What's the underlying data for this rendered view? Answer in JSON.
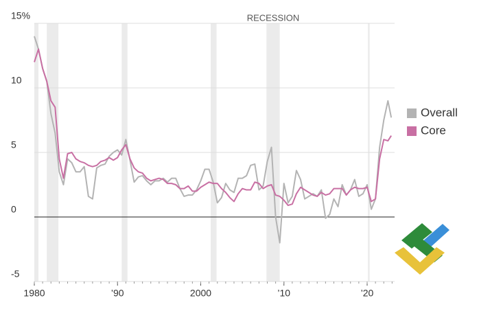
{
  "chart_data": {
    "type": "line",
    "annotation": "RECESSION",
    "recessions": [
      [
        1980.0,
        1980.5
      ],
      [
        1981.5,
        1982.9
      ],
      [
        1990.5,
        1991.2
      ],
      [
        2001.2,
        2001.9
      ],
      [
        2007.9,
        2009.5
      ],
      [
        2020.1,
        2020.3
      ]
    ],
    "x": [
      1980.0,
      1980.5,
      1981.0,
      1981.5,
      1982.0,
      1982.5,
      1983.0,
      1983.5,
      1984.0,
      1984.5,
      1985.0,
      1985.5,
      1986.0,
      1986.5,
      1987.0,
      1987.5,
      1988.0,
      1988.5,
      1989.0,
      1989.5,
      1990.0,
      1990.5,
      1991.0,
      1991.5,
      1992.0,
      1992.5,
      1993.0,
      1993.5,
      1994.0,
      1994.5,
      1995.0,
      1995.5,
      1996.0,
      1996.5,
      1997.0,
      1997.5,
      1998.0,
      1998.5,
      1999.0,
      1999.5,
      2000.0,
      2000.5,
      2001.0,
      2001.5,
      2002.0,
      2002.5,
      2003.0,
      2003.5,
      2004.0,
      2004.5,
      2005.0,
      2005.5,
      2006.0,
      2006.5,
      2007.0,
      2007.5,
      2008.0,
      2008.5,
      2009.0,
      2009.5,
      2010.0,
      2010.5,
      2011.0,
      2011.5,
      2012.0,
      2012.5,
      2013.0,
      2013.5,
      2014.0,
      2014.5,
      2015.0,
      2015.5,
      2016.0,
      2016.5,
      2017.0,
      2017.5,
      2018.0,
      2018.5,
      2019.0,
      2019.5,
      2020.0,
      2020.5,
      2021.0,
      2021.5,
      2022.0,
      2022.5,
      2022.9
    ],
    "series": [
      {
        "name": "Overall",
        "color": "#b3b3b3",
        "values": [
          14.0,
          13.0,
          11.5,
          10.5,
          8.0,
          6.5,
          3.5,
          2.5,
          4.5,
          4.2,
          3.5,
          3.5,
          3.9,
          1.6,
          1.4,
          3.8,
          4.0,
          4.1,
          4.7,
          5.0,
          5.2,
          4.8,
          6.0,
          4.4,
          2.7,
          3.1,
          3.2,
          2.8,
          2.5,
          2.8,
          2.8,
          3.0,
          2.7,
          3.0,
          3.0,
          2.2,
          1.6,
          1.7,
          1.7,
          2.1,
          2.8,
          3.7,
          3.7,
          2.7,
          1.1,
          1.5,
          2.6,
          2.1,
          1.9,
          3.0,
          3.0,
          3.2,
          4.0,
          4.1,
          2.1,
          2.4,
          4.3,
          5.4,
          0.0,
          -2.0,
          2.6,
          1.1,
          1.6,
          3.6,
          2.9,
          1.4,
          1.6,
          1.8,
          1.6,
          2.1,
          -0.1,
          0.2,
          1.4,
          0.8,
          2.5,
          1.7,
          2.1,
          2.9,
          1.6,
          1.8,
          2.5,
          0.6,
          1.4,
          5.4,
          7.5,
          9.0,
          7.7
        ]
      },
      {
        "name": "Core",
        "color": "#c86fa3",
        "values": [
          12.0,
          13.0,
          11.5,
          10.5,
          9.0,
          8.5,
          4.5,
          3.0,
          4.9,
          5.0,
          4.5,
          4.3,
          4.2,
          4.0,
          3.9,
          4.0,
          4.3,
          4.4,
          4.6,
          4.4,
          4.6,
          5.2,
          5.6,
          4.5,
          3.8,
          3.5,
          3.4,
          3.0,
          2.8,
          2.9,
          3.0,
          2.9,
          2.6,
          2.6,
          2.5,
          2.2,
          2.2,
          2.4,
          2.0,
          2.0,
          2.3,
          2.5,
          2.7,
          2.6,
          2.6,
          2.2,
          1.9,
          1.5,
          1.2,
          1.8,
          2.2,
          2.1,
          2.1,
          2.7,
          2.6,
          2.2,
          2.4,
          2.5,
          1.7,
          1.6,
          1.3,
          0.9,
          1.0,
          1.8,
          2.3,
          2.1,
          1.9,
          1.7,
          1.6,
          1.9,
          1.7,
          1.8,
          2.2,
          2.2,
          2.2,
          1.7,
          2.1,
          2.3,
          2.2,
          2.2,
          2.3,
          1.2,
          1.4,
          4.5,
          6.0,
          5.9,
          6.3
        ]
      }
    ],
    "xlim": [
      1980,
      2023.3
    ],
    "xticks": [
      1980,
      {
        "value": 1990,
        "label": "’90"
      },
      2000,
      {
        "value": 2010,
        "label": "’10"
      },
      {
        "value": 2020,
        "label": "’20"
      }
    ],
    "ylim": [
      -5,
      15
    ],
    "yticks": [
      {
        "value": 15,
        "label": "15%"
      },
      10,
      5,
      0,
      -5
    ],
    "grid": true,
    "legend": "right"
  }
}
